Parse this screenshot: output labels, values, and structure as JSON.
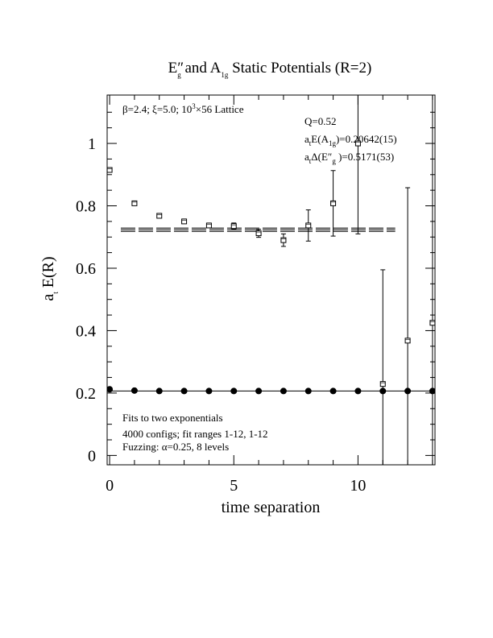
{
  "chart_data": {
    "type": "scatter",
    "title": [
      "E″",
      "g",
      "  and A",
      "1g",
      " Static Potentials (R=2)"
    ],
    "xlabel": "time separation",
    "ylabel": [
      "a",
      "t",
      " E(R)"
    ],
    "annotations": [
      [
        "β=2.4; ξ=5.0; 10",
        "3",
        "×56 Lattice"
      ],
      [
        "Q=0.52"
      ],
      [
        "a",
        "t",
        "E(A",
        "1g",
        ")=0.20642(15)"
      ],
      [
        "a",
        "t",
        "Δ(E″",
        "g",
        " )=0.5171(53)"
      ],
      [
        "Fits to two exponentials"
      ],
      [
        "4000 configs; fit ranges 1-12, 1-12"
      ],
      [
        "Fuzzing: α=0.25, 8 levels"
      ]
    ],
    "xlim": [
      -0.1,
      13.1
    ],
    "ylim": [
      -0.03,
      1.155
    ],
    "xticks": [
      0,
      5,
      10
    ],
    "xminor": [
      1,
      2,
      3,
      4,
      6,
      7,
      8,
      9,
      11,
      12,
      13
    ],
    "yticks": [
      0,
      0.2,
      0.4,
      0.6,
      0.8,
      1
    ],
    "yminor": [
      0.05,
      0.1,
      0.15,
      0.25,
      0.3,
      0.35,
      0.45,
      0.5,
      0.55,
      0.65,
      0.7,
      0.75,
      0.85,
      0.9,
      0.95,
      1.05,
      1.1
    ],
    "series": [
      {
        "marker": "circle",
        "color": "#000000",
        "x": [
          0,
          1,
          2,
          3,
          4,
          5,
          6,
          7,
          8,
          9,
          10,
          11,
          12,
          13
        ],
        "values": [
          0.212,
          0.208,
          0.2065,
          0.2065,
          0.2065,
          0.2065,
          0.2065,
          0.2065,
          0.2065,
          0.2065,
          0.2065,
          0.2065,
          0.2065,
          0.2065
        ]
      },
      {
        "marker": "square",
        "color": "#000000",
        "x": [
          0,
          1,
          2,
          3,
          4,
          5,
          6,
          7,
          8,
          9,
          10,
          11,
          12,
          13
        ],
        "values": [
          0.915,
          0.808,
          0.768,
          0.75,
          0.737,
          0.735,
          0.712,
          0.69,
          0.737,
          0.808,
          1.0,
          0.229,
          0.368,
          0.425
        ],
        "errors": [
          0.003,
          0.003,
          0.003,
          0.004,
          0.005,
          0.01,
          0.013,
          0.02,
          0.05,
          0.105,
          0.29,
          0.366,
          0.49,
          0.8
        ]
      }
    ],
    "fits": [
      {
        "value": 0.2064,
        "error": 0.00015,
        "x": [
          -0.1,
          13.1
        ]
      },
      {
        "value": 0.7235,
        "error": 0.0053,
        "x": [
          0.45,
          11.5
        ]
      }
    ]
  }
}
